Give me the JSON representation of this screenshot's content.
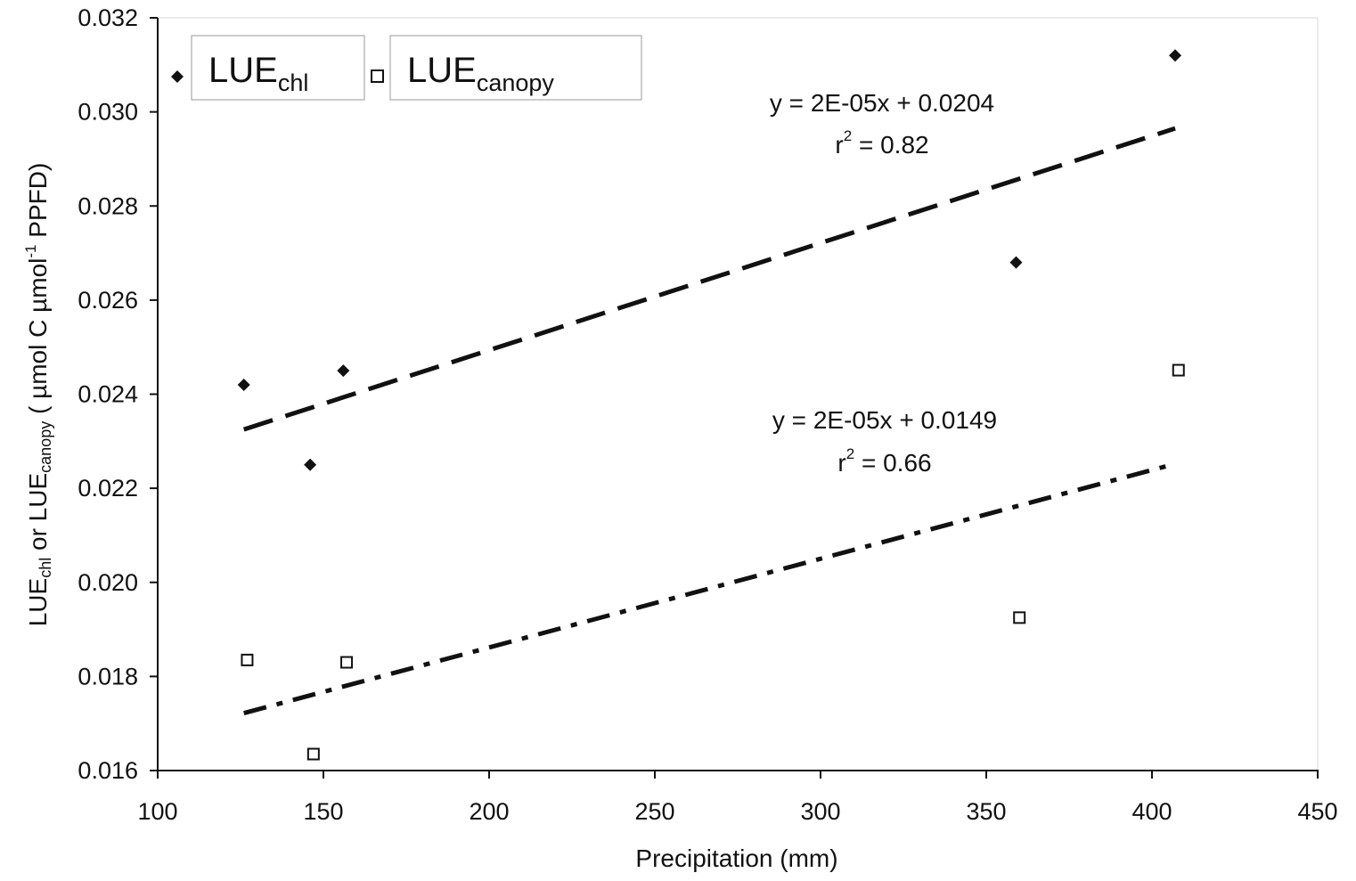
{
  "chart_data": {
    "type": "scatter",
    "xlabel": "Precipitation (mm)",
    "ylabel": {
      "p1": "LUE",
      "s1": "chl",
      "p2": " or LUE",
      "s2": "canopy",
      "p3": " ( µmol C µmol",
      "sup": "-1",
      "p4": " PPFD)"
    },
    "xlim": [
      100,
      450
    ],
    "ylim": [
      0.016,
      0.032
    ],
    "xticks": [
      "100",
      "150",
      "200",
      "250",
      "300",
      "350",
      "400",
      "450"
    ],
    "xtick_values": [
      100,
      150,
      200,
      250,
      300,
      350,
      400,
      450
    ],
    "yticks": [
      "0.016",
      "0.018",
      "0.020",
      "0.022",
      "0.024",
      "0.026",
      "0.028",
      "0.030",
      "0.032"
    ],
    "ytick_values": [
      0.016,
      0.018,
      0.02,
      0.022,
      0.024,
      0.026,
      0.028,
      0.03,
      0.032
    ],
    "grid": false,
    "legend_position": "top-left",
    "series": [
      {
        "name": "LUE_chl",
        "legend_main": "LUE",
        "legend_sub": "chl",
        "marker": "filled-diamond",
        "color": "#111111",
        "x": [
          126,
          146,
          156,
          359,
          407
        ],
        "y": [
          0.0242,
          0.0225,
          0.0245,
          0.0268,
          0.0312
        ],
        "trendline": {
          "style": "dash",
          "x_range": [
            126,
            407
          ],
          "y_range": [
            0.02325,
            0.02965
          ],
          "equation": "y = 2E-05x + 0.0204",
          "r2_prefix": "r",
          "r2_sup": "2",
          "r2_rest": " = 0.82"
        }
      },
      {
        "name": "LUE_canopy",
        "legend_main": "LUE",
        "legend_sub": "canopy",
        "marker": "open-square",
        "color": "#111111",
        "x": [
          127,
          147,
          157,
          360,
          408
        ],
        "y": [
          0.01835,
          0.01635,
          0.0183,
          0.01925,
          0.02451
        ],
        "trendline": {
          "style": "dash-dot",
          "x_range": [
            126,
            407
          ],
          "y_range": [
            0.01722,
            0.02252
          ],
          "equation": "y = 2E-05x + 0.0149",
          "r2_prefix": "r",
          "r2_sup": "2",
          "r2_rest": " = 0.66"
        }
      }
    ]
  }
}
